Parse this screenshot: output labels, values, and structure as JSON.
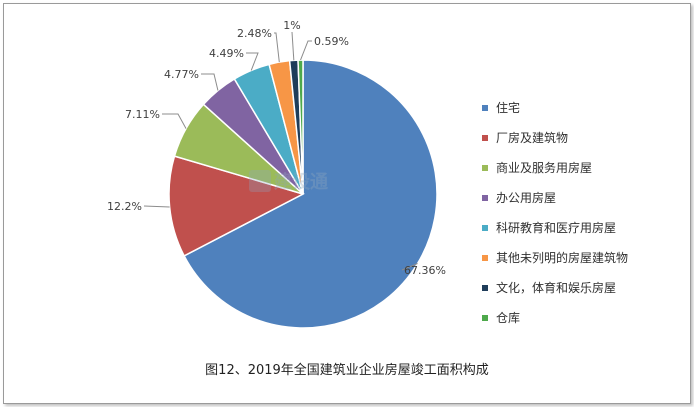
{
  "chart_data": {
    "type": "pie",
    "title": "图12、2019年全国建筑业企业房屋竣工面积构成",
    "start_angle_deg": 0,
    "direction": "clockwise",
    "legend_position": "right",
    "slices": [
      {
        "name": "住宅",
        "value": 67.36,
        "label": "67.36%",
        "color": "#4F81BD"
      },
      {
        "name": "厂房及建筑物",
        "value": 12.2,
        "label": "12.2%",
        "color": "#C0504D"
      },
      {
        "name": "商业及服务用房屋",
        "value": 7.11,
        "label": "7.11%",
        "color": "#9BBB59"
      },
      {
        "name": "办公用房屋",
        "value": 4.77,
        "label": "4.77%",
        "color": "#8064A2"
      },
      {
        "name": "科研教育和医疗用房屋",
        "value": 4.49,
        "label": "4.49%",
        "color": "#4BACC6"
      },
      {
        "name": "其他未列明的房屋建筑物",
        "value": 2.48,
        "label": "2.48%",
        "color": "#F79646"
      },
      {
        "name": "文化，体育和娱乐房屋",
        "value": 1.0,
        "label": "1%",
        "color": "#1F3D5A"
      },
      {
        "name": "仓库",
        "value": 0.59,
        "label": "0.59%",
        "color": "#4EA94B"
      }
    ]
  },
  "watermark": {
    "text": "建设通",
    "icon": "building-logo-icon"
  }
}
